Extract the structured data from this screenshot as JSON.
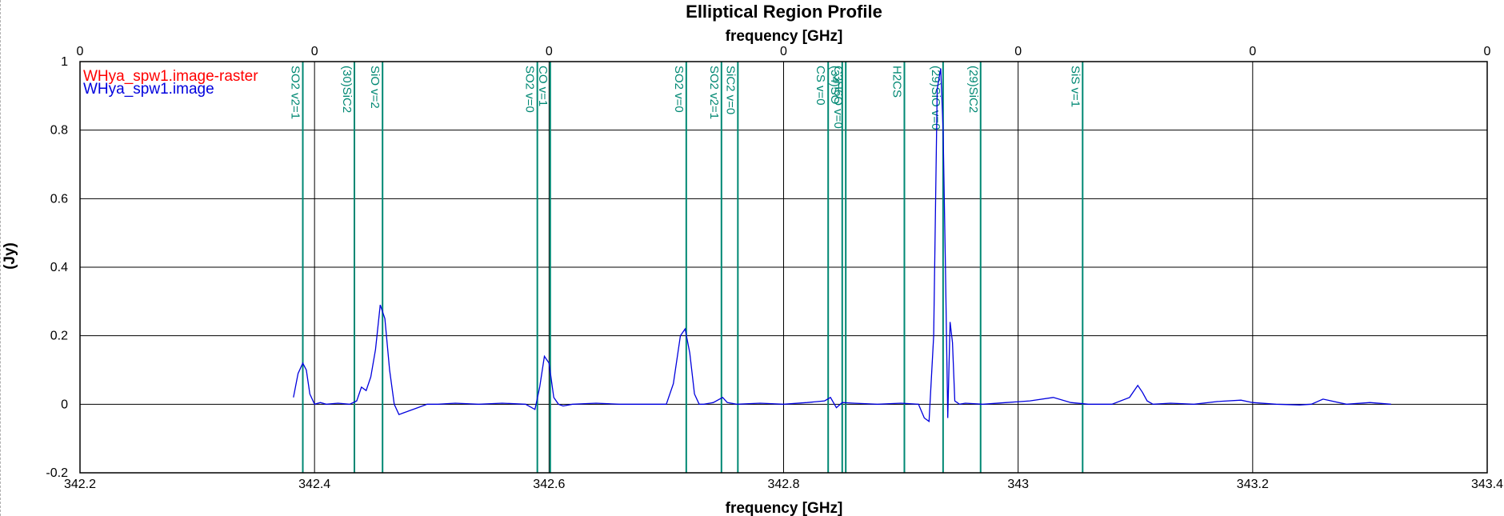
{
  "chart_data": {
    "type": "line",
    "title": "Elliptical Region Profile",
    "top_xlabel": "frequency [GHz]",
    "xlabel": "frequency [GHz]",
    "ylabel": "(Jy)",
    "xlim": [
      342.2,
      343.4
    ],
    "ylim": [
      -0.2,
      1.0
    ],
    "x_ticks": [
      "342.2",
      "342.4",
      "342.6",
      "342.8",
      "343",
      "343.2",
      "343.4"
    ],
    "x_tick_values": [
      342.2,
      342.4,
      342.6,
      342.8,
      343.0,
      343.2,
      343.4
    ],
    "y_ticks": [
      "-0.2",
      "0",
      "0.2",
      "0.4",
      "0.6",
      "0.8",
      "1"
    ],
    "y_tick_values": [
      -0.2,
      0,
      0.2,
      0.4,
      0.6,
      0.8,
      1.0
    ],
    "top_ticks": [
      "0",
      "0",
      "0",
      "0",
      "0",
      "0",
      "0"
    ],
    "grid": true,
    "legend_position": "top-left",
    "series": [
      {
        "name": "WHya_spw1.image-raster",
        "color": "#ff0000",
        "x": [],
        "y": []
      },
      {
        "name": "WHya_spw1.image",
        "color": "#0000dd",
        "x": [
          342.382,
          342.386,
          342.39,
          342.393,
          342.396,
          342.4,
          342.405,
          342.41,
          342.42,
          342.43,
          342.436,
          342.44,
          342.444,
          342.448,
          342.452,
          342.456,
          342.46,
          342.464,
          342.468,
          342.472,
          342.476,
          342.48,
          342.488,
          342.496,
          342.505,
          342.52,
          342.54,
          342.56,
          342.58,
          342.588,
          342.592,
          342.596,
          342.6,
          342.604,
          342.608,
          342.612,
          342.62,
          342.64,
          342.66,
          342.68,
          342.7,
          342.706,
          342.712,
          342.716,
          342.72,
          342.724,
          342.728,
          342.732,
          342.74,
          342.748,
          342.752,
          342.76,
          342.78,
          342.8,
          342.82,
          342.835,
          342.84,
          342.845,
          342.85,
          342.86,
          342.88,
          342.9,
          342.915,
          342.92,
          342.924,
          342.928,
          342.931,
          342.934,
          342.936,
          342.938,
          342.94,
          342.942,
          342.944,
          342.946,
          342.95,
          342.955,
          342.97,
          342.99,
          343.01,
          343.03,
          343.045,
          343.06,
          343.08,
          343.095,
          343.102,
          343.106,
          343.11,
          343.115,
          343.13,
          343.15,
          343.17,
          343.19,
          343.2,
          343.22,
          343.24,
          343.25,
          343.26,
          343.28,
          343.3,
          343.318
        ],
        "y": [
          0.02,
          0.09,
          0.12,
          0.1,
          0.03,
          0.0,
          0.005,
          0.0,
          0.003,
          0.0,
          0.01,
          0.05,
          0.04,
          0.08,
          0.16,
          0.29,
          0.25,
          0.1,
          0.0,
          -0.03,
          -0.025,
          -0.02,
          -0.01,
          0.0,
          0.0,
          0.003,
          0.0,
          0.003,
          0.0,
          -0.015,
          0.05,
          0.14,
          0.12,
          0.02,
          0.0,
          -0.005,
          0.0,
          0.003,
          0.0,
          0.0,
          0.0,
          0.06,
          0.2,
          0.22,
          0.15,
          0.03,
          0.0,
          0.0,
          0.005,
          0.02,
          0.005,
          0.0,
          0.003,
          0.0,
          0.005,
          0.01,
          0.02,
          -0.01,
          0.005,
          0.003,
          0.0,
          0.003,
          0.0,
          -0.04,
          -0.05,
          0.2,
          0.92,
          0.98,
          0.8,
          0.4,
          -0.04,
          0.24,
          0.18,
          0.01,
          0.0,
          0.003,
          0.0,
          0.005,
          0.01,
          0.02,
          0.005,
          0.0,
          0.0,
          0.02,
          0.055,
          0.035,
          0.01,
          0.0,
          0.003,
          0.0,
          0.008,
          0.012,
          0.005,
          0.0,
          -0.002,
          0.0,
          0.015,
          0.0,
          0.005,
          0.0
        ]
      }
    ],
    "spectral_lines": [
      {
        "label": "SO2 v2=1",
        "x": 342.39
      },
      {
        "label": "(30)SiC2",
        "x": 342.434
      },
      {
        "label": "SiO v=2",
        "x": 342.458
      },
      {
        "label": "SO2 v=0",
        "x": 342.59
      },
      {
        "label": "CO v=1",
        "x": 342.601
      },
      {
        "label": "SO2 v=0",
        "x": 342.717
      },
      {
        "label": "SO2 v2=1",
        "x": 342.747
      },
      {
        "label": "SiC2 v=0",
        "x": 342.761
      },
      {
        "label": "CS v=0",
        "x": 342.838
      },
      {
        "label": "(34)SO",
        "x": 342.85
      },
      {
        "label": "C3H6O v=0",
        "x": 342.853
      },
      {
        "label": "H2CS",
        "x": 342.903
      },
      {
        "label": "(29)SiO v=0",
        "x": 342.936
      },
      {
        "label": "(29)SiC2",
        "x": 342.968
      },
      {
        "label": "SiS v=1",
        "x": 343.055
      }
    ],
    "line_color": "#008873"
  }
}
